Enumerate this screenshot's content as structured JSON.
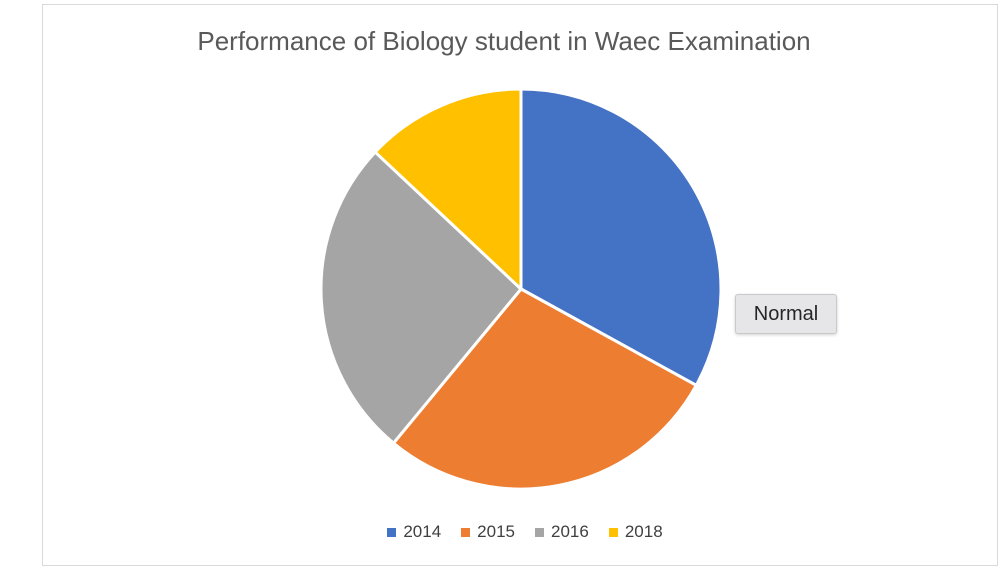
{
  "chart_data": {
    "type": "pie",
    "title": "Performance of Biology student in Waec Examination",
    "categories": [
      "2014",
      "2015",
      "2016",
      "2018"
    ],
    "values": [
      33,
      28,
      26,
      13
    ],
    "colors": [
      "#4472C4",
      "#ED7D31",
      "#A5A5A5",
      "#FFC000"
    ],
    "legend_position": "bottom"
  },
  "tooltip": {
    "text": "Normal"
  },
  "legend": {
    "items": [
      {
        "label": "2014",
        "color": "#4472C4"
      },
      {
        "label": "2015",
        "color": "#ED7D31"
      },
      {
        "label": "2016",
        "color": "#A5A5A5"
      },
      {
        "label": "2018",
        "color": "#FFC000"
      }
    ]
  }
}
